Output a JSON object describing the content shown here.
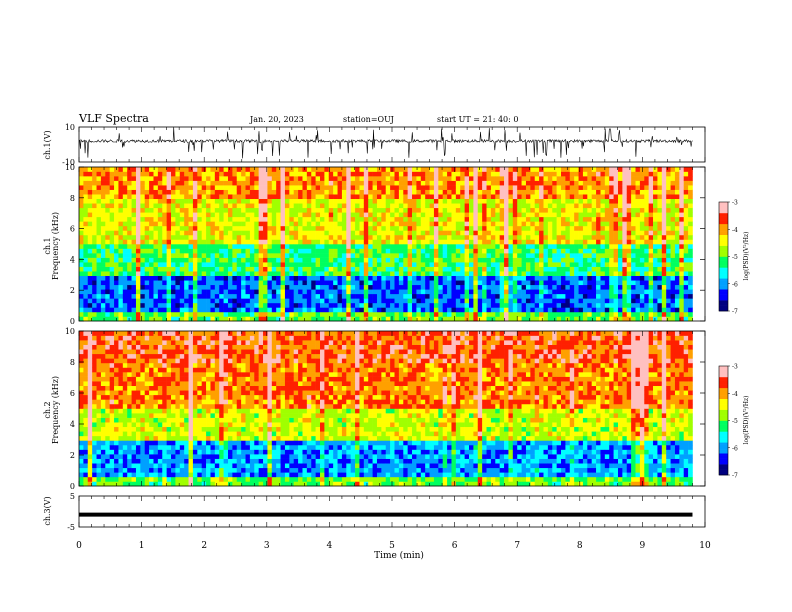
{
  "header": {
    "title": "VLF Spectra",
    "date": "Jan. 20, 2023",
    "station": "station=OUJ",
    "start": "start  UT =   21: 40: 0"
  },
  "chart_data": [
    {
      "type": "line",
      "title": "",
      "ylabel": "ch.1(V)",
      "ylim": [
        -10,
        10
      ],
      "y_ticks": [
        "10",
        "-10"
      ],
      "series_description": "noisy waveform near +2 V with negative spikes",
      "x": [
        0,
        1,
        2,
        3,
        4,
        5,
        6,
        7,
        8,
        9,
        9.8
      ],
      "values": [
        2,
        2,
        2,
        2,
        2,
        2,
        2,
        2,
        2,
        2,
        2
      ]
    },
    {
      "type": "heatmap",
      "ylabel": "ch.1\nFrequency (kHz)",
      "ylim": [
        0,
        10
      ],
      "y_ticks": [
        "0",
        "2",
        "4",
        "6",
        "8",
        "10"
      ],
      "x_range_min": [
        0,
        9.8
      ],
      "colorbar": {
        "label": "log(PSD)(V²/Hz)",
        "range": [
          -7,
          -3
        ],
        "ticks": [
          "-3",
          "-4",
          "-5",
          "-6",
          "-7"
        ]
      },
      "profile_by_band": {
        "0-0.5kHz": -5.0,
        "0.5-3kHz": -6.2,
        "3-5kHz": -5.2,
        "5-8kHz": -4.5,
        "8-10kHz": -4.0
      }
    },
    {
      "type": "heatmap",
      "ylabel": "ch.2\nFrequency (kHz)",
      "ylim": [
        0,
        10
      ],
      "y_ticks": [
        "0",
        "2",
        "4",
        "6",
        "8",
        "10"
      ],
      "x_range_min": [
        0,
        9.8
      ],
      "colorbar": {
        "label": "log(PSD)(V²/Hz)",
        "range": [
          -7,
          -3
        ],
        "ticks": [
          "-3",
          "-4",
          "-5",
          "-6",
          "-7"
        ]
      },
      "profile_by_band": {
        "0-0.5kHz": -5.0,
        "0.5-3kHz": -6.0,
        "3-5kHz": -4.6,
        "5-8kHz": -3.9,
        "8-10kHz": -3.7
      }
    },
    {
      "type": "line",
      "ylabel": "ch.3(V)",
      "ylim": [
        -5,
        5
      ],
      "y_ticks": [
        "5",
        "-5"
      ],
      "x": [
        0,
        9.8
      ],
      "values": [
        -1,
        -1
      ]
    }
  ],
  "xaxis": {
    "label": "Time (min)",
    "ticks": [
      "0",
      "1",
      "2",
      "3",
      "4",
      "5",
      "6",
      "7",
      "8",
      "9",
      "10"
    ],
    "range": [
      0,
      10
    ]
  },
  "colors": {
    "cmap": [
      "#000080",
      "#0000ff",
      "#00a0ff",
      "#00ffff",
      "#00ff60",
      "#a0ff00",
      "#ffff00",
      "#ffa000",
      "#ff2000",
      "#ffc0c0"
    ]
  }
}
